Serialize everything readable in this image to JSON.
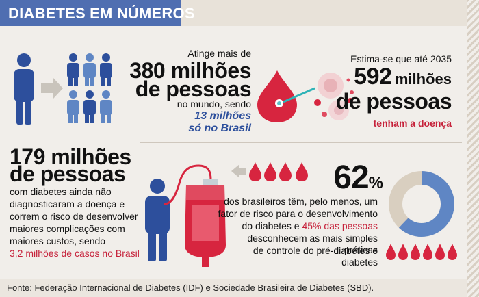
{
  "header": {
    "title": "DIABETES EM NÚMEROS"
  },
  "stat1": {
    "intro": "Atinge mais de",
    "value_line1": "380 milhões",
    "value_line2": "de pessoas",
    "mid": "no mundo, sendo",
    "brazil_line1": "13 milhões",
    "brazil_line2": "só no Brasil"
  },
  "stat2": {
    "intro": "Estima-se que até 2035",
    "value": "592",
    "value_unit": "milhões",
    "value_line2": "de pessoas",
    "outro": "tenham a doença"
  },
  "stat3": {
    "value_line1": "179 milhões",
    "value_line2": "de pessoas",
    "lines": [
      "com diabetes ainda não",
      "diagnosticaram a doença e",
      "correm o risco de desenvolver",
      "maiores complicações com",
      "maiores custos, sendo"
    ],
    "brazil": "3,2 milhões de casos no Brasil"
  },
  "stat4": {
    "value": "62",
    "unit": "%",
    "line1": "dos brasileiros têm, pelo menos, um",
    "line2": "fator de risco para o desenvolvimento",
    "line3_a": "do diabetes e",
    "line3_b": "45% das pessoas",
    "line4": "desconhecem as mais simples práticas",
    "line5": "de controle do pré-diabetes e diabetes",
    "donut_percent": 62
  },
  "footer": {
    "source": "Fonte: Federação Internacional de Diabetes (IDF) e Sociedade Brasileira de Diabetes (SBD)."
  },
  "colors": {
    "blue": "#2d4f9c",
    "light_blue": "#5f86c4",
    "red": "#c6213a",
    "beige": "#d9cfc0"
  },
  "icons": [
    "person-icon",
    "arrow-right-icon",
    "blood-drop-icon",
    "blood-cell-icon",
    "blood-bag-icon",
    "arrow-left-icon",
    "donut-chart"
  ]
}
